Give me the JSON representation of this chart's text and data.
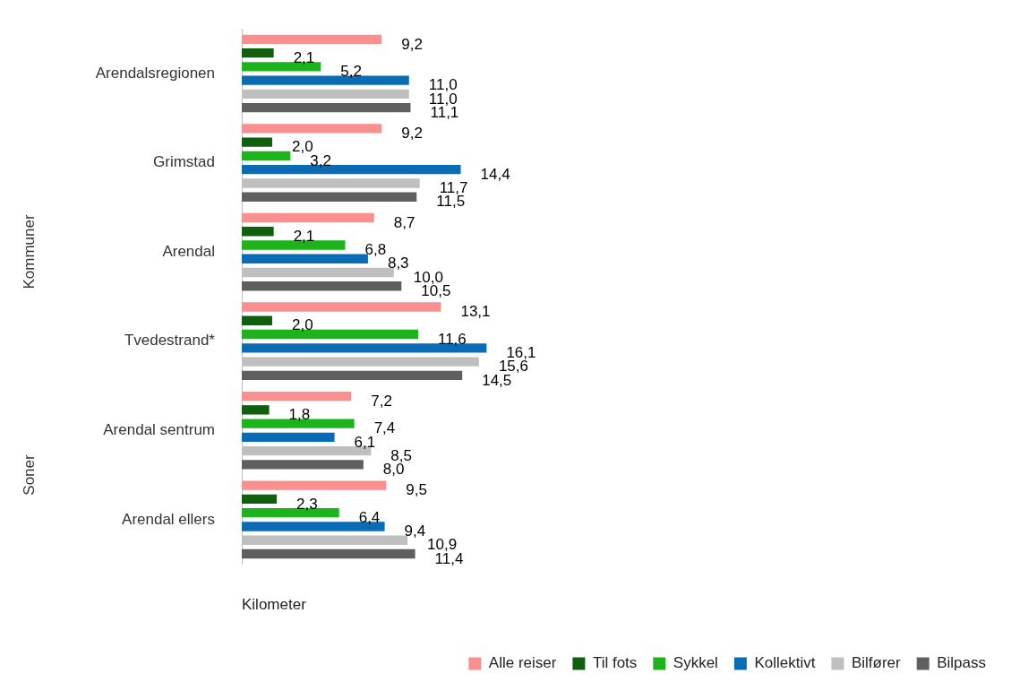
{
  "chart_data": {
    "type": "bar",
    "orientation": "horizontal",
    "xlabel": "Kilometer",
    "categories": [
      "Arendalsregionen",
      "Grimstad",
      "Arendal",
      "Tvedestrand*",
      "Arendal sentrum",
      "Arendal ellers"
    ],
    "annotations": [
      "Kommuner",
      "Soner"
    ],
    "series": [
      {
        "name": "Alle reiser",
        "color": "#f98f8f",
        "values": [
          9.2,
          9.2,
          8.7,
          13.1,
          7.2,
          9.5
        ],
        "value_labels": [
          "9,2",
          "9,2",
          "8,7",
          "13,1",
          "7,2",
          "9,5"
        ]
      },
      {
        "name": "Til fots",
        "color": "#0f5f0f",
        "values": [
          2.1,
          2.0,
          2.1,
          2.0,
          1.8,
          2.3
        ],
        "value_labels": [
          "2,1",
          "2,0",
          "2,1",
          "2,0",
          "1,8",
          "2,3"
        ]
      },
      {
        "name": "Sykkel",
        "color": "#1cb31c",
        "values": [
          5.2,
          3.2,
          6.8,
          11.6,
          7.4,
          6.4
        ],
        "value_labels": [
          "5,2",
          "3,2",
          "6,8",
          "11,6",
          "7,4",
          "6,4"
        ]
      },
      {
        "name": "Kollektivt",
        "color": "#0a6cb4",
        "values": [
          11.0,
          14.4,
          8.3,
          16.1,
          6.1,
          9.4
        ],
        "value_labels": [
          "11,0",
          "14,4",
          "8,3",
          "16,1",
          "6,1",
          "9,4"
        ]
      },
      {
        "name": "Bilfører",
        "color": "#bfbfbf",
        "values": [
          11.0,
          11.7,
          10.0,
          15.6,
          8.5,
          10.9
        ],
        "value_labels": [
          "11,0",
          "11,7",
          "10,0",
          "15,6",
          "8,5",
          "10,9"
        ]
      },
      {
        "name": "Bilpass",
        "color": "#5f5f5f",
        "values": [
          11.1,
          11.5,
          10.5,
          14.5,
          8.0,
          11.4
        ],
        "value_labels": [
          "11,1",
          "11,5",
          "10,5",
          "14,5",
          "8,0",
          "11,4"
        ]
      }
    ],
    "grid": false,
    "legend": "bottom right"
  }
}
